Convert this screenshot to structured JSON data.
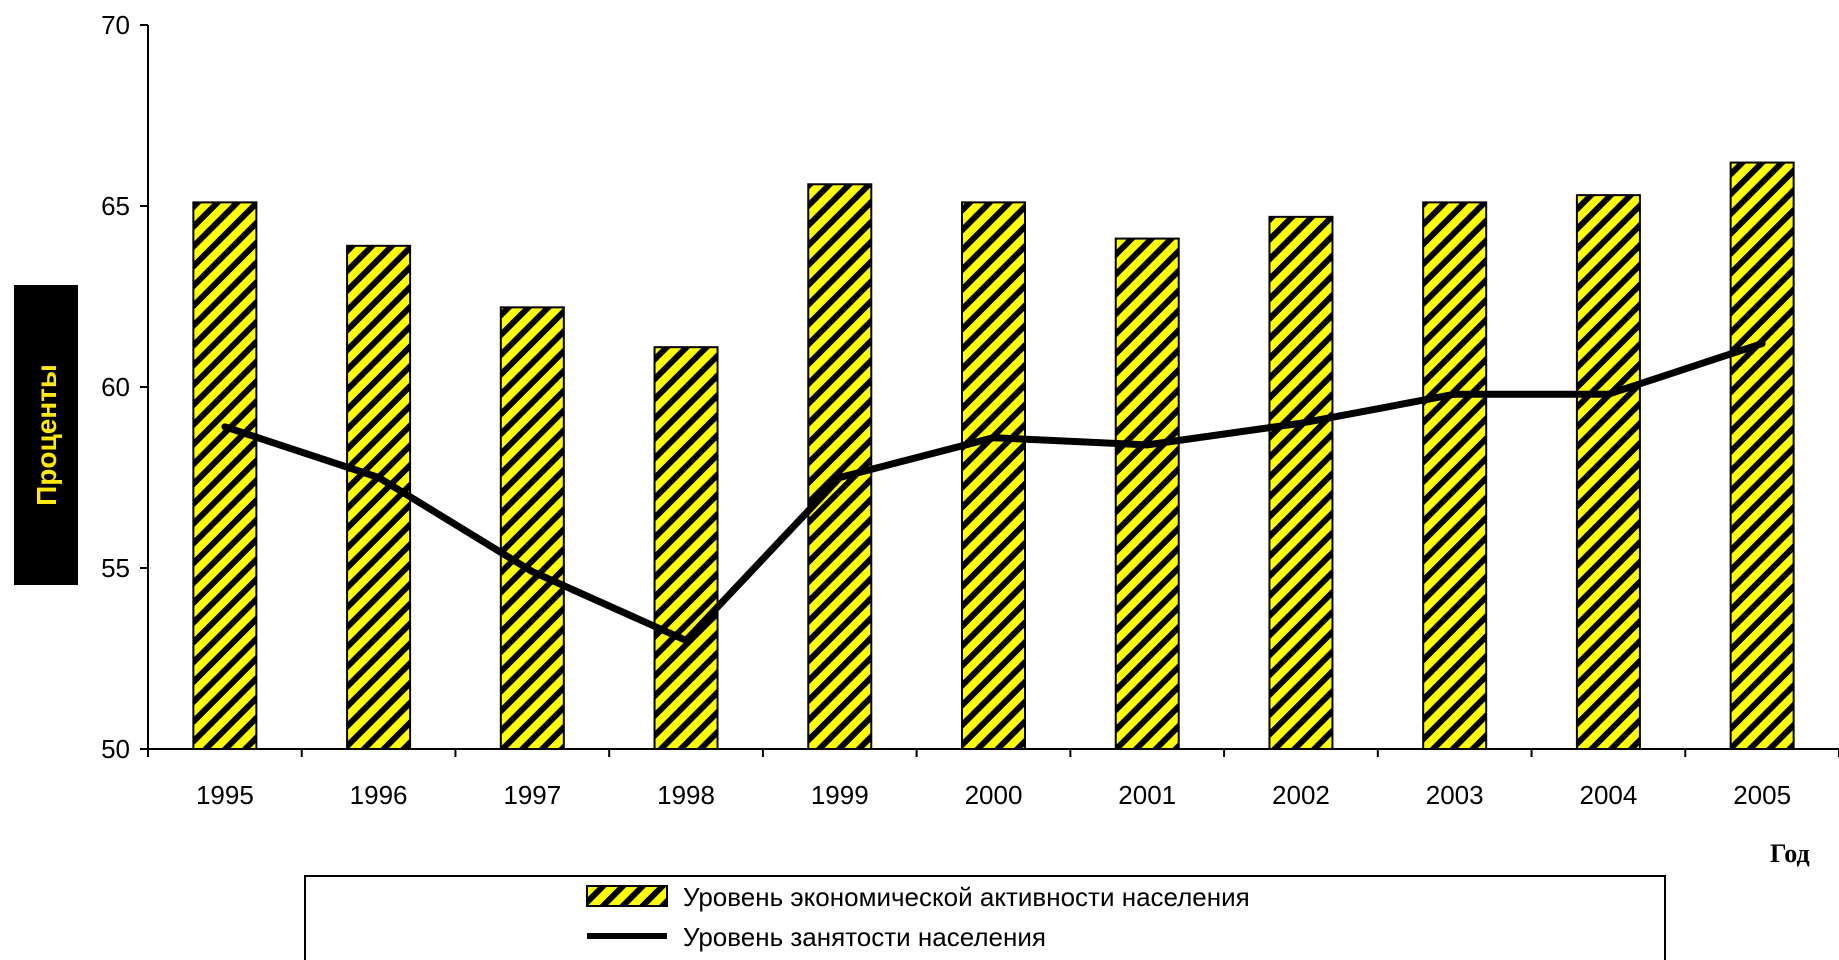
{
  "chart_data": {
    "type": "bar",
    "categories": [
      "1995",
      "1996",
      "1997",
      "1998",
      "1999",
      "2000",
      "2001",
      "2002",
      "2003",
      "2004",
      "2005"
    ],
    "series": [
      {
        "name": "Уровень экономической активности населения",
        "type": "bar",
        "values": [
          65.1,
          63.9,
          62.2,
          61.1,
          65.6,
          65.1,
          64.1,
          64.7,
          65.1,
          65.3,
          66.2
        ],
        "color": "#ffff00",
        "pattern": "black-diagonal-stripes"
      },
      {
        "name": "Уровень занятости населения",
        "type": "line",
        "values": [
          58.9,
          57.5,
          54.9,
          53.0,
          57.5,
          58.6,
          58.4,
          59.0,
          59.8,
          59.8,
          61.2
        ],
        "color": "#000000"
      }
    ],
    "ylim": [
      50,
      70
    ],
    "yticks": [
      "50",
      "55",
      "60",
      "65",
      "70"
    ],
    "ylabel": "Проценты",
    "xlabel": "Год",
    "ylabel_background": "#000000",
    "ylabel_color": "#ffea00",
    "grid": false,
    "legend_position": "bottom"
  }
}
